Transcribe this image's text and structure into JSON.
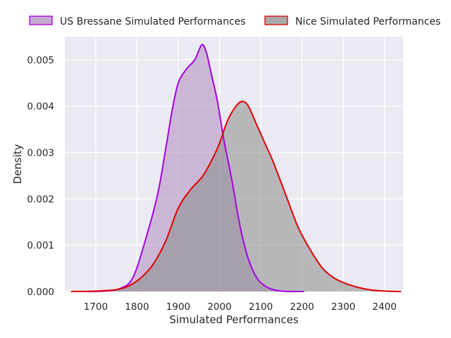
{
  "chart_data": {
    "type": "area",
    "title": "",
    "xlabel": "Simulated Performances",
    "ylabel": "Density",
    "xlim": [
      1625,
      2445
    ],
    "ylim": [
      0,
      0.0055
    ],
    "xticks": [
      1700,
      1800,
      1900,
      2000,
      2100,
      2200,
      2300,
      2400
    ],
    "xtick_labels": [
      "1700",
      "1800",
      "1900",
      "2000",
      "2100",
      "2200",
      "2300",
      "2400"
    ],
    "yticks": [
      0,
      0.001,
      0.002,
      0.003,
      0.004,
      0.005
    ],
    "ytick_labels": [
      "0.000",
      "0.001",
      "0.002",
      "0.003",
      "0.004",
      "0.005"
    ],
    "grid": true,
    "legend_position": "top",
    "series": [
      {
        "name": "US Bressane Simulated Performances",
        "line_color": "#a600e0",
        "fill_color": "#b08cbd",
        "x": [
          1675,
          1720,
          1760,
          1790,
          1820,
          1850,
          1870,
          1885,
          1900,
          1920,
          1940,
          1955,
          1962,
          1970,
          1980,
          1995,
          2010,
          2030,
          2050,
          2070,
          2090,
          2110,
          2130,
          2150,
          2175,
          2205
        ],
        "y": [
          0.0,
          1e-05,
          7e-05,
          0.0003,
          0.0011,
          0.0021,
          0.0031,
          0.0039,
          0.0045,
          0.0048,
          0.005,
          0.0053,
          0.0053,
          0.0051,
          0.0047,
          0.0041,
          0.0033,
          0.0024,
          0.0014,
          0.0007,
          0.0003,
          0.00012,
          4e-05,
          1e-05,
          0.0,
          0.0
        ]
      },
      {
        "name": "Nice Simulated Performances",
        "line_color": "#e00000",
        "fill_color": "#8c8c8c",
        "x": [
          1640,
          1700,
          1750,
          1780,
          1810,
          1840,
          1870,
          1900,
          1930,
          1960,
          1985,
          2000,
          2020,
          2040,
          2055,
          2070,
          2090,
          2110,
          2130,
          2160,
          2190,
          2220,
          2250,
          2280,
          2310,
          2340,
          2370,
          2400,
          2440
        ],
        "y": [
          0.0,
          1e-05,
          4e-05,
          0.00012,
          0.0003,
          0.0006,
          0.0011,
          0.0018,
          0.0022,
          0.0025,
          0.0029,
          0.0032,
          0.0037,
          0.004,
          0.0041,
          0.004,
          0.0036,
          0.0032,
          0.0028,
          0.0021,
          0.0014,
          0.0009,
          0.0005,
          0.00028,
          0.00016,
          8e-05,
          3e-05,
          1e-05,
          0.0
        ]
      }
    ]
  }
}
